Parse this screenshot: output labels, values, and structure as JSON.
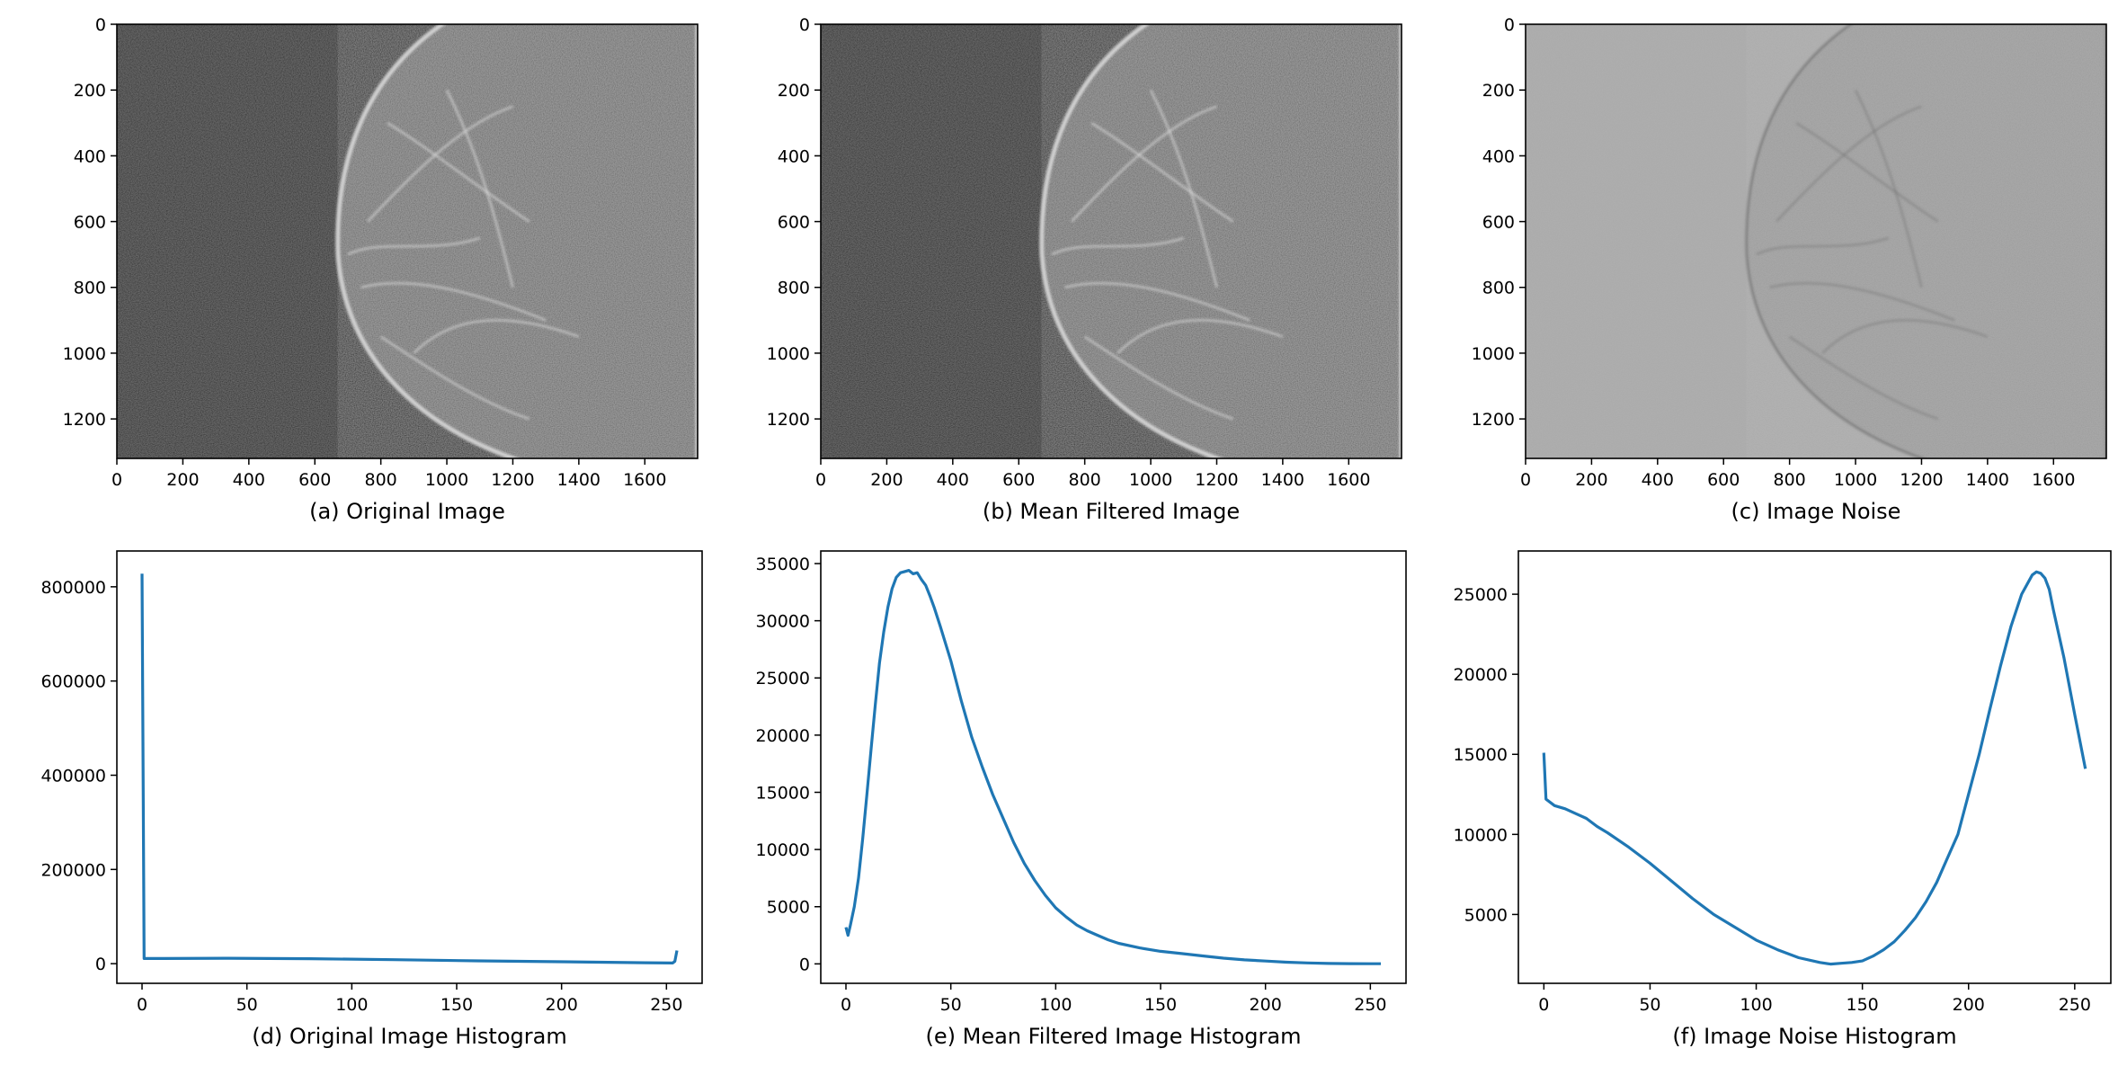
{
  "figure": {
    "background": "#ffffff",
    "series_color": "#1f77b4"
  },
  "chart_data": [
    {
      "type": "image",
      "caption": "(a) Original Image",
      "content": "mammogram-original",
      "xlim": [
        0,
        1760
      ],
      "ylim": [
        1320,
        0
      ],
      "xticks": [
        0,
        200,
        400,
        600,
        800,
        1000,
        1200,
        1400,
        1600
      ],
      "yticks": [
        0,
        200,
        400,
        600,
        800,
        1000,
        1200
      ],
      "colors": {
        "background": "#1c1c1c",
        "tissue": "#d8d8d8"
      }
    },
    {
      "type": "image",
      "caption": "(b) Mean Filtered Image",
      "content": "mammogram-mean-filtered",
      "xlim": [
        0,
        1760
      ],
      "ylim": [
        1320,
        0
      ],
      "xticks": [
        0,
        200,
        400,
        600,
        800,
        1000,
        1200,
        1400,
        1600
      ],
      "yticks": [
        0,
        200,
        400,
        600,
        800,
        1000,
        1200
      ],
      "colors": {
        "background": "#1c1c1c",
        "tissue": "#d8d8d8"
      }
    },
    {
      "type": "image",
      "caption": "(c) Image Noise",
      "content": "noise-residual",
      "xlim": [
        0,
        1760
      ],
      "ylim": [
        1320,
        0
      ],
      "xticks": [
        0,
        200,
        400,
        600,
        800,
        1000,
        1200,
        1400,
        1600
      ],
      "yticks": [
        0,
        200,
        400,
        600,
        800,
        1000,
        1200
      ],
      "colors": {
        "background": "#a9a9a9",
        "tissue": "#6c6c6c"
      }
    },
    {
      "type": "line",
      "caption": "(d) Original Image Histogram",
      "xlim": [
        -12,
        267
      ],
      "ylim": [
        -41700,
        876000
      ],
      "xticks": [
        0,
        50,
        100,
        150,
        200,
        250
      ],
      "yticks": [
        0,
        200000,
        400000,
        600000,
        800000
      ],
      "grid": false,
      "x": [
        0,
        1,
        10,
        40,
        80,
        120,
        160,
        200,
        240,
        253,
        254,
        255
      ],
      "y": [
        828000,
        11000,
        11000,
        11500,
        10500,
        8500,
        6000,
        4000,
        2000,
        1500,
        5000,
        28000
      ]
    },
    {
      "type": "line",
      "caption": "(e) Mean Filtered Image Histogram",
      "xlim": [
        -12,
        267
      ],
      "ylim": [
        -1700,
        36100
      ],
      "xticks": [
        0,
        50,
        100,
        150,
        200,
        250
      ],
      "yticks": [
        0,
        5000,
        10000,
        15000,
        20000,
        25000,
        30000,
        35000
      ],
      "grid": false,
      "x": [
        0,
        1,
        2,
        4,
        6,
        8,
        10,
        12,
        14,
        16,
        18,
        20,
        22,
        24,
        26,
        28,
        30,
        32,
        34,
        36,
        38,
        40,
        42,
        45,
        50,
        55,
        60,
        65,
        70,
        75,
        80,
        85,
        90,
        95,
        100,
        105,
        110,
        115,
        120,
        125,
        130,
        140,
        150,
        160,
        170,
        180,
        190,
        200,
        210,
        220,
        230,
        240,
        255
      ],
      "y": [
        3200,
        2500,
        3300,
        5000,
        7500,
        11000,
        14800,
        18800,
        22700,
        26300,
        29000,
        31200,
        32800,
        33800,
        34200,
        34300,
        34400,
        34100,
        34200,
        33600,
        33100,
        32200,
        31200,
        29500,
        26500,
        23000,
        19800,
        17200,
        14800,
        12700,
        10600,
        8800,
        7300,
        6000,
        4900,
        4100,
        3400,
        2900,
        2500,
        2100,
        1800,
        1400,
        1100,
        900,
        700,
        500,
        350,
        250,
        150,
        80,
        40,
        20,
        10
      ]
    },
    {
      "type": "line",
      "caption": "(f) Image Noise Histogram",
      "xlim": [
        -12,
        267
      ],
      "ylim": [
        700,
        27700
      ],
      "xticks": [
        0,
        50,
        100,
        150,
        200,
        250
      ],
      "yticks": [
        5000,
        10000,
        15000,
        20000,
        25000
      ],
      "grid": false,
      "x": [
        0,
        1,
        5,
        10,
        15,
        20,
        25,
        30,
        40,
        50,
        60,
        70,
        80,
        90,
        100,
        110,
        120,
        130,
        135,
        140,
        145,
        150,
        155,
        160,
        165,
        170,
        175,
        180,
        185,
        190,
        195,
        200,
        205,
        210,
        215,
        220,
        225,
        230,
        232,
        234,
        236,
        238,
        240,
        245,
        250,
        255
      ],
      "y": [
        15100,
        12200,
        11800,
        11600,
        11300,
        11000,
        10500,
        10100,
        9200,
        8200,
        7100,
        6000,
        5000,
        4200,
        3400,
        2800,
        2300,
        2000,
        1900,
        1950,
        2000,
        2100,
        2400,
        2800,
        3300,
        4000,
        4800,
        5800,
        7000,
        8500,
        10000,
        12500,
        15000,
        17800,
        20500,
        23000,
        25000,
        26200,
        26400,
        26300,
        26000,
        25300,
        24000,
        21000,
        17500,
        14100
      ]
    }
  ]
}
